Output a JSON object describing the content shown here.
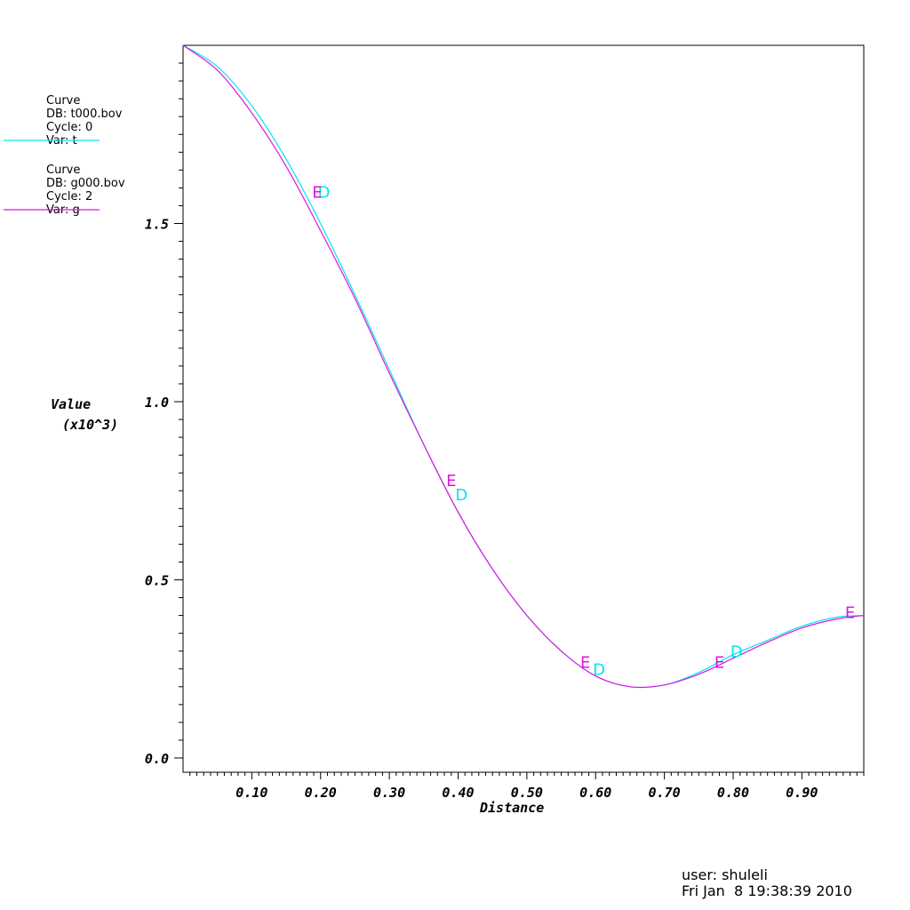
{
  "chart_data": {
    "type": "line",
    "xlabel": "Distance",
    "ylabel": "Value",
    "ylabel_scale": "(x10^3)",
    "xlim": [
      0.0,
      0.99
    ],
    "ylim": [
      -0.04,
      2.0
    ],
    "x_ticks": [
      0.1,
      0.2,
      0.3,
      0.4,
      0.5,
      0.6,
      0.7,
      0.8,
      0.9
    ],
    "x_tick_labels": [
      "0.10",
      "0.20",
      "0.30",
      "0.40",
      "0.50",
      "0.60",
      "0.70",
      "0.80",
      "0.90"
    ],
    "y_ticks": [
      0.0,
      0.5,
      1.0,
      1.5
    ],
    "y_tick_labels": [
      "0.0",
      "0.5",
      "1.0",
      "1.5"
    ],
    "grid": false,
    "legend_position": "left",
    "series": [
      {
        "name": "Curve",
        "db": "DB: t000.bov",
        "cycle": "Cycle: 0",
        "var": "Var: t",
        "color": "#00e5ee",
        "marker": "D",
        "x": [
          0.0,
          0.05,
          0.1,
          0.15,
          0.2,
          0.25,
          0.3,
          0.35,
          0.4,
          0.45,
          0.5,
          0.55,
          0.6,
          0.65,
          0.7,
          0.75,
          0.8,
          0.85,
          0.9,
          0.95,
          0.99
        ],
        "y": [
          2.0,
          1.94,
          1.83,
          1.68,
          1.5,
          1.3,
          1.09,
          0.88,
          0.69,
          0.53,
          0.4,
          0.3,
          0.23,
          0.2,
          0.205,
          0.24,
          0.29,
          0.33,
          0.37,
          0.395,
          0.4
        ],
        "marker_x": [
          0.205,
          0.405,
          0.605,
          0.805
        ],
        "marker_y": [
          1.59,
          0.74,
          0.25,
          0.3
        ]
      },
      {
        "name": "Curve",
        "db": "DB: g000.bov",
        "cycle": "Cycle: 2",
        "var": "Var: g",
        "color": "#e014e0",
        "marker": "E",
        "x": [
          0.0,
          0.05,
          0.1,
          0.15,
          0.2,
          0.25,
          0.3,
          0.35,
          0.4,
          0.45,
          0.5,
          0.55,
          0.6,
          0.65,
          0.7,
          0.75,
          0.8,
          0.85,
          0.9,
          0.95,
          0.99
        ],
        "y": [
          2.0,
          1.93,
          1.81,
          1.66,
          1.48,
          1.29,
          1.08,
          0.88,
          0.69,
          0.53,
          0.4,
          0.3,
          0.23,
          0.2,
          0.205,
          0.235,
          0.28,
          0.325,
          0.365,
          0.39,
          0.4
        ],
        "marker_x": [
          0.195,
          0.39,
          0.585,
          0.78,
          0.97
        ],
        "marker_y": [
          1.59,
          0.78,
          0.27,
          0.27,
          0.41
        ]
      }
    ]
  },
  "footer": {
    "user": "user: shuleli",
    "timestamp": "Fri Jan  8 19:38:39 2010"
  }
}
